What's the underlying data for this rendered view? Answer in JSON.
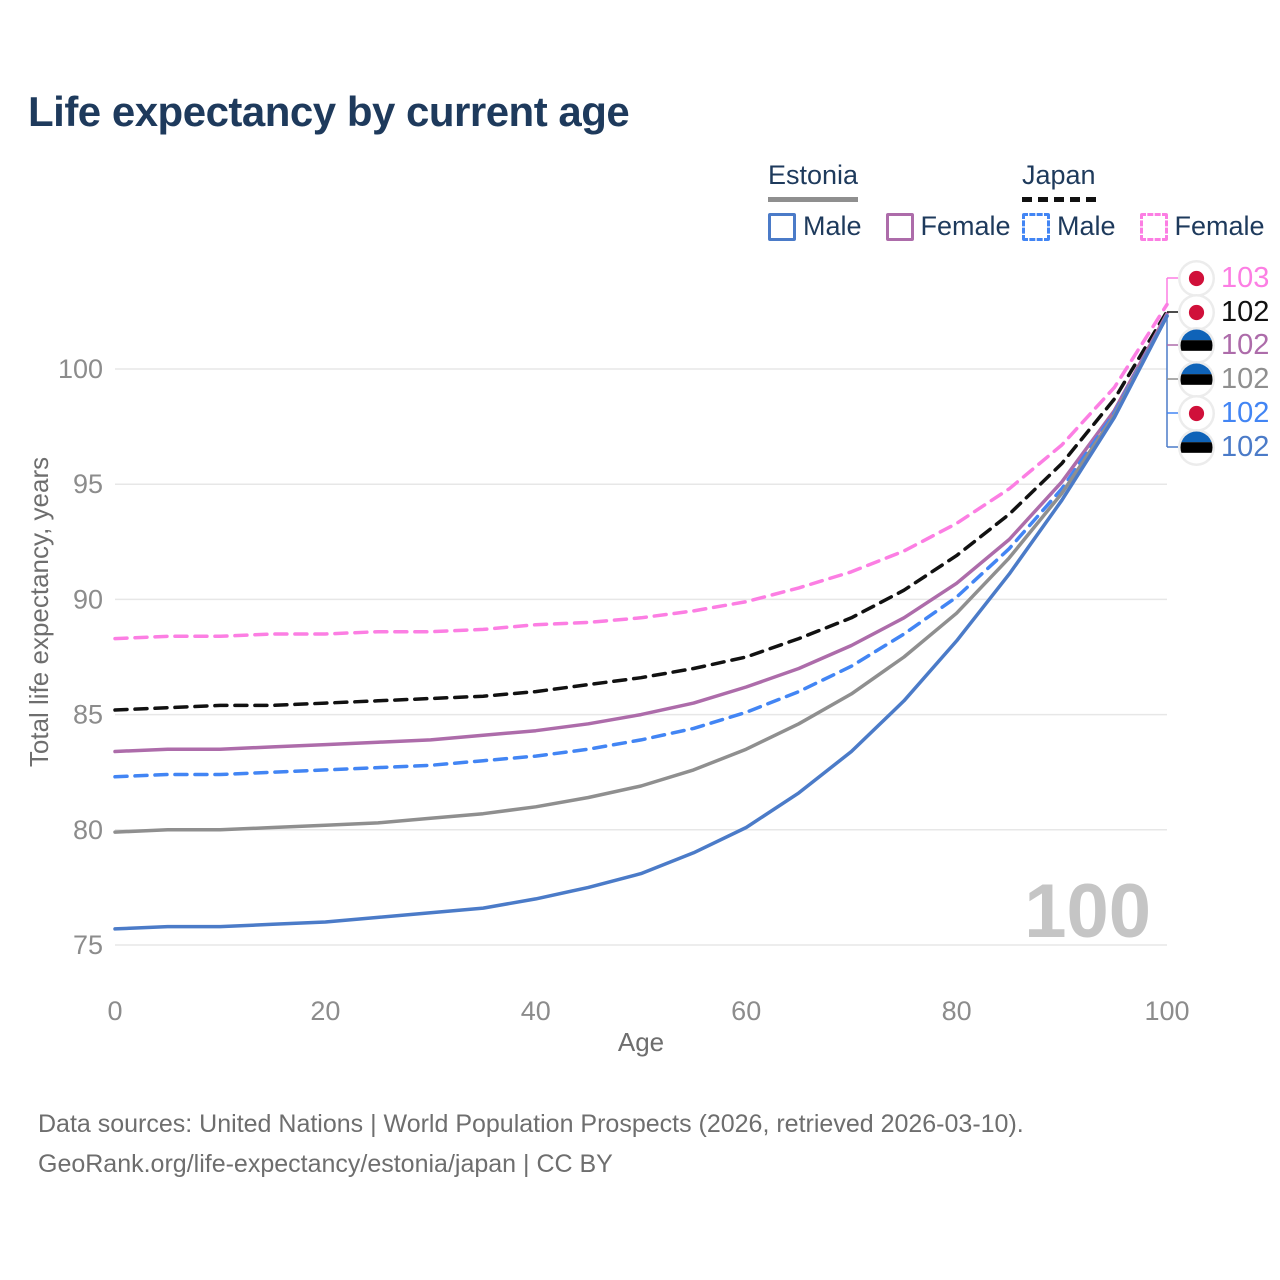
{
  "title": "Life expectancy by current age",
  "legend": {
    "groups": [
      {
        "country": "Estonia",
        "underline_style": "solid",
        "underline_color": "#8f8f8f",
        "items": [
          {
            "label": "Male",
            "color": "#4b7bc8",
            "dashed": false
          },
          {
            "label": "Female",
            "color": "#ad6caa",
            "dashed": false
          }
        ]
      },
      {
        "country": "Japan",
        "underline_style": "dashed",
        "underline_color": "#111111",
        "items": [
          {
            "label": "Male",
            "color": "#4285f4",
            "dashed": true
          },
          {
            "label": "Female",
            "color": "#fc7ee3",
            "dashed": true
          }
        ]
      }
    ]
  },
  "watermark": "100",
  "footer": {
    "line1": "Data sources: United Nations | World Population Prospects (2026, retrieved 2026-03-10).",
    "line2": "GeoRank.org/life-expectancy/estonia/japan | CC BY"
  },
  "chart_data": {
    "type": "line",
    "title": "Life expectancy by current age",
    "xlabel": "Age",
    "ylabel": "Total life expectancy, years",
    "xlim": [
      0,
      100
    ],
    "ylim": [
      74.5,
      103.5
    ],
    "x_ticks": [
      0,
      20,
      40,
      60,
      80,
      100
    ],
    "y_ticks": [
      75,
      80,
      85,
      90,
      95,
      100
    ],
    "grid": "horizontal",
    "legend_position": "top-right",
    "x": [
      0,
      5,
      10,
      15,
      20,
      25,
      30,
      35,
      40,
      45,
      50,
      55,
      60,
      65,
      70,
      75,
      80,
      85,
      90,
      95,
      100
    ],
    "series": [
      {
        "name": "japan_female",
        "label": "Japan Female",
        "color": "#fc7ee3",
        "dashed": true,
        "values": [
          88.3,
          88.4,
          88.4,
          88.5,
          88.5,
          88.6,
          88.6,
          88.7,
          88.9,
          89.0,
          89.2,
          89.5,
          89.9,
          90.5,
          91.2,
          92.1,
          93.3,
          94.8,
          96.7,
          99.2,
          102.8
        ]
      },
      {
        "name": "japan_total",
        "label": "Japan Total",
        "color": "#111111",
        "dashed": true,
        "values": [
          85.2,
          85.3,
          85.4,
          85.4,
          85.5,
          85.6,
          85.7,
          85.8,
          86.0,
          86.3,
          86.6,
          87.0,
          87.5,
          88.3,
          89.2,
          90.4,
          91.9,
          93.7,
          95.9,
          98.7,
          102.5
        ]
      },
      {
        "name": "estonia_female",
        "label": "Estonia Female",
        "color": "#ad6caa",
        "dashed": false,
        "values": [
          83.4,
          83.5,
          83.5,
          83.6,
          83.7,
          83.8,
          83.9,
          84.1,
          84.3,
          84.6,
          85.0,
          85.5,
          86.2,
          87.0,
          88.0,
          89.2,
          90.7,
          92.6,
          95.1,
          98.2,
          102.4
        ]
      },
      {
        "name": "japan_male",
        "label": "Japan Male",
        "color": "#4285f4",
        "dashed": true,
        "values": [
          82.3,
          82.4,
          82.4,
          82.5,
          82.6,
          82.7,
          82.8,
          83.0,
          83.2,
          83.5,
          83.9,
          84.4,
          85.1,
          86.0,
          87.1,
          88.5,
          90.1,
          92.2,
          94.8,
          98.1,
          102.3
        ]
      },
      {
        "name": "estonia_total",
        "label": "Estonia Total",
        "color": "#8f8f8f",
        "dashed": false,
        "values": [
          79.9,
          80.0,
          80.0,
          80.1,
          80.2,
          80.3,
          80.5,
          80.7,
          81.0,
          81.4,
          81.9,
          82.6,
          83.5,
          84.6,
          85.9,
          87.5,
          89.4,
          91.8,
          94.6,
          98.0,
          102.3
        ]
      },
      {
        "name": "estonia_male",
        "label": "Estonia Male",
        "color": "#4b7bc8",
        "dashed": false,
        "values": [
          75.7,
          75.8,
          75.8,
          75.9,
          76.0,
          76.2,
          76.4,
          76.6,
          77.0,
          77.5,
          78.1,
          79.0,
          80.1,
          81.6,
          83.4,
          85.6,
          88.2,
          91.1,
          94.3,
          97.9,
          102.3
        ]
      }
    ]
  },
  "right_labels": [
    {
      "series": "japan_female",
      "flag": "japan",
      "value": "103",
      "color": "#fc7ee3"
    },
    {
      "series": "japan_total",
      "flag": "japan",
      "value": "102",
      "color": "#111111"
    },
    {
      "series": "estonia_female",
      "flag": "estonia",
      "value": "102",
      "color": "#ad6caa"
    },
    {
      "series": "estonia_total",
      "flag": "estonia",
      "value": "102",
      "color": "#8f8f8f"
    },
    {
      "series": "japan_male",
      "flag": "japan",
      "value": "102",
      "color": "#4285f4"
    },
    {
      "series": "estonia_male",
      "flag": "estonia",
      "value": "102",
      "color": "#4b7bc8"
    }
  ],
  "flag_colors": {
    "japan_red": "#d0103a",
    "estonia_blue": "#0f63b8",
    "estonia_black": "#000000",
    "badge_bg": "#ececec"
  }
}
